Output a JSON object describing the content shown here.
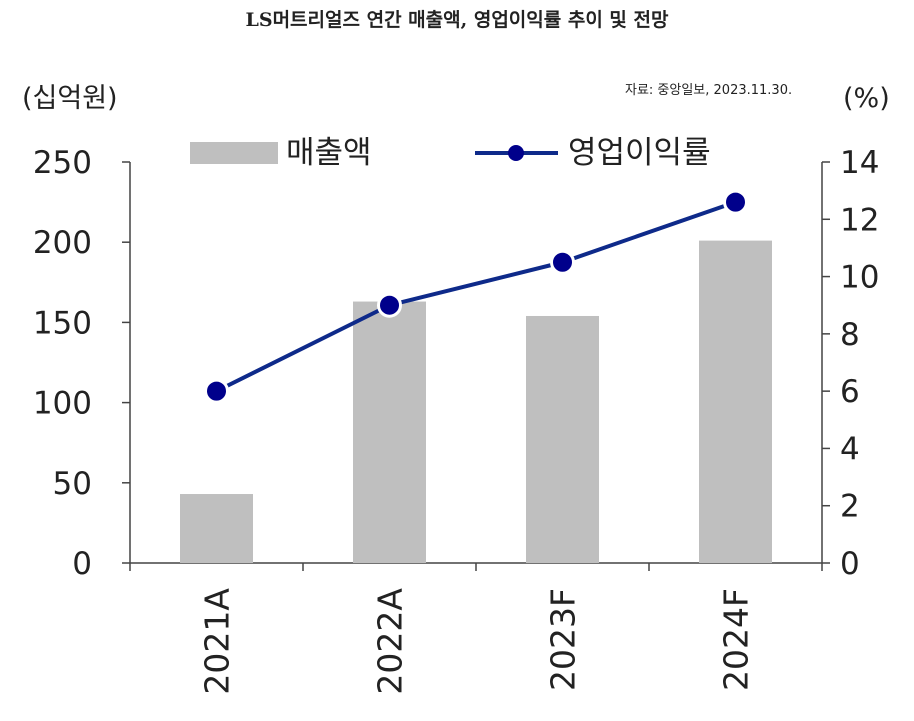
{
  "header": {
    "title": "LS머트리얼즈 연간 매출액, 영업이익률 추이 및 전망",
    "source": "자료: 중앙일보, 2023.11.30."
  },
  "chart_data": {
    "type": "bar+line",
    "title": "LS머트리얼즈 연간 매출액, 영업이익률 추이 및 전망",
    "categories": [
      "2021A",
      "2022A",
      "2023F",
      "2024F"
    ],
    "series": [
      {
        "name": "매출액",
        "type": "bar",
        "axis": "left",
        "values": [
          43,
          163,
          154,
          201
        ]
      },
      {
        "name": "영업이익률",
        "type": "line",
        "axis": "right",
        "values": [
          6.0,
          9.0,
          10.5,
          12.6
        ]
      }
    ],
    "left_axis": {
      "unit": "(십억원)",
      "ylim": [
        0,
        250
      ],
      "ticks": [
        "0",
        "50",
        "100",
        "150",
        "200",
        "250"
      ]
    },
    "right_axis": {
      "unit": "(%)",
      "ylim": [
        0,
        14
      ],
      "ticks": [
        "0",
        "2",
        "4",
        "6",
        "8",
        "10",
        "12",
        "14"
      ]
    },
    "grid": false,
    "legend": "top",
    "colors": {
      "bar": "#bfbfbf",
      "line": "#0e2a8a",
      "marker": "#00008b"
    }
  }
}
